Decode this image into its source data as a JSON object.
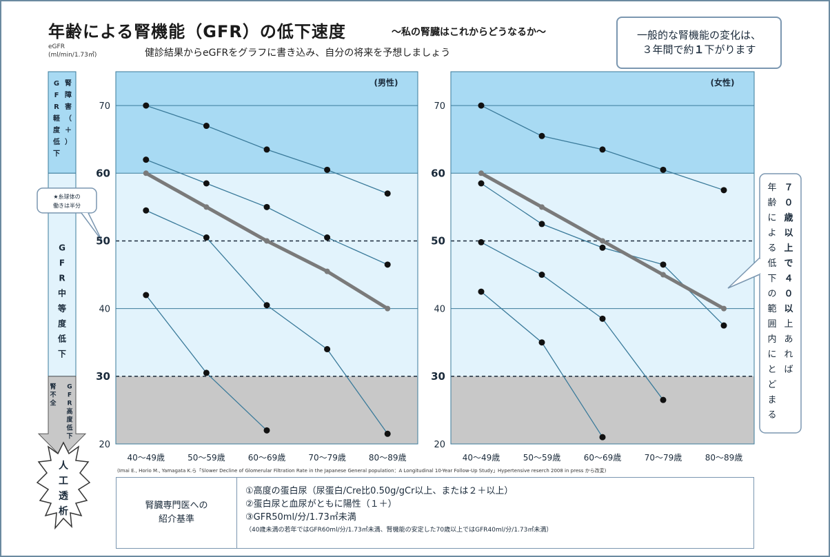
{
  "header": {
    "title": "年齢による腎機能（GFR）の低下速度",
    "title_sub": "～私の腎臓はこれからどうなるか～",
    "subtitle": "健診結果からeGFRをグラフに書き込み、自分の将来を予想しましょう",
    "unit_line1": "eGFR",
    "unit_line2": "(ml/min/1.73㎡)"
  },
  "callout_top": {
    "line1": "一般的な腎機能の変化は、",
    "line2_a": "３年間で約",
    "line2_b": "１",
    "line2_c": "下がります"
  },
  "left_bands": {
    "mild": "GFR軽度低下",
    "mild_sub": "腎障害（＋）",
    "moderate": "GFR中等度低下",
    "severe": "GFR高度低下",
    "severe_sub": "腎不全",
    "note": "★糸球体の働きは半分",
    "dialysis": "人工透析"
  },
  "right_note": {
    "col1": "７０歳以上で４０以上あれば",
    "col2": "年齢による低下の範囲内にとどまる"
  },
  "colors": {
    "band_high": "#a8daf3",
    "band_mid": "#e2f3fc",
    "band_low": "#c8c8c8",
    "line": "#3a7a9a",
    "avg": "#7a7a7a",
    "point": "#111111"
  },
  "chart_data": [
    {
      "type": "line",
      "title": "(男性)",
      "categories": [
        "40～49歳",
        "50～59歳",
        "60～69歳",
        "70～79歳",
        "80～89歳"
      ],
      "ylim": [
        20,
        75
      ],
      "yticks": [
        20,
        30,
        40,
        50,
        60,
        70
      ],
      "dashed_lines": [
        30,
        50
      ],
      "bands": [
        {
          "from": 60,
          "to": 75,
          "color": "band_high"
        },
        {
          "from": 30,
          "to": 60,
          "color": "band_mid"
        },
        {
          "from": 20,
          "to": 30,
          "color": "band_low"
        }
      ],
      "series": [
        {
          "values": [
            70,
            67,
            63.5,
            60.5,
            57
          ]
        },
        {
          "values": [
            62,
            58.5,
            55,
            50.5,
            46.5
          ]
        },
        {
          "values": [
            54.5,
            50.5,
            40.5,
            34,
            21.5
          ]
        },
        {
          "values": [
            42,
            30.5,
            22,
            null,
            null
          ]
        },
        {
          "values": [
            60,
            55,
            50,
            45.5,
            40
          ],
          "style": "average"
        }
      ]
    },
    {
      "type": "line",
      "title": "(女性)",
      "categories": [
        "40～49歳",
        "50～59歳",
        "60～69歳",
        "70～79歳",
        "80～89歳"
      ],
      "ylim": [
        20,
        75
      ],
      "yticks": [
        20,
        30,
        40,
        50,
        60,
        70
      ],
      "dashed_lines": [
        30,
        50
      ],
      "bands": [
        {
          "from": 60,
          "to": 75,
          "color": "band_high"
        },
        {
          "from": 30,
          "to": 60,
          "color": "band_mid"
        },
        {
          "from": 20,
          "to": 30,
          "color": "band_low"
        }
      ],
      "series": [
        {
          "values": [
            70,
            65.5,
            63.5,
            60.5,
            57.5
          ]
        },
        {
          "values": [
            58.5,
            52.5,
            49,
            46.5,
            37.5
          ]
        },
        {
          "values": [
            49.8,
            45,
            38.5,
            26.5,
            null
          ]
        },
        {
          "values": [
            42.5,
            35,
            21,
            null,
            null
          ]
        },
        {
          "values": [
            60,
            55,
            50,
            45,
            40
          ],
          "style": "average"
        }
      ]
    }
  ],
  "reference": "(Imai E., Horio M., Yamagata K.ら「Slower Decline of Glomerular Filtration Rate in the Japanese General population：A Longitudinal 10-Year Follow-Up Study」Hypertensive reserch 2008 in press から改変)",
  "criteria": {
    "label_line1": "腎臓専門医への",
    "label_line2": "紹介基準",
    "item1": "①高度の蛋白尿（尿蛋白/Cre比0.50g/gCr以上、または２＋以上）",
    "item2": "②蛋白尿と血尿がともに陽性（１＋）",
    "item3": "③GFR50ml/分/1.73㎡未満",
    "item4": "（40歳未満の若年ではGFR60ml/分/1.73㎡未満、腎機能の安定した70歳以上ではGFR40ml/分/1.73㎡未満）"
  }
}
